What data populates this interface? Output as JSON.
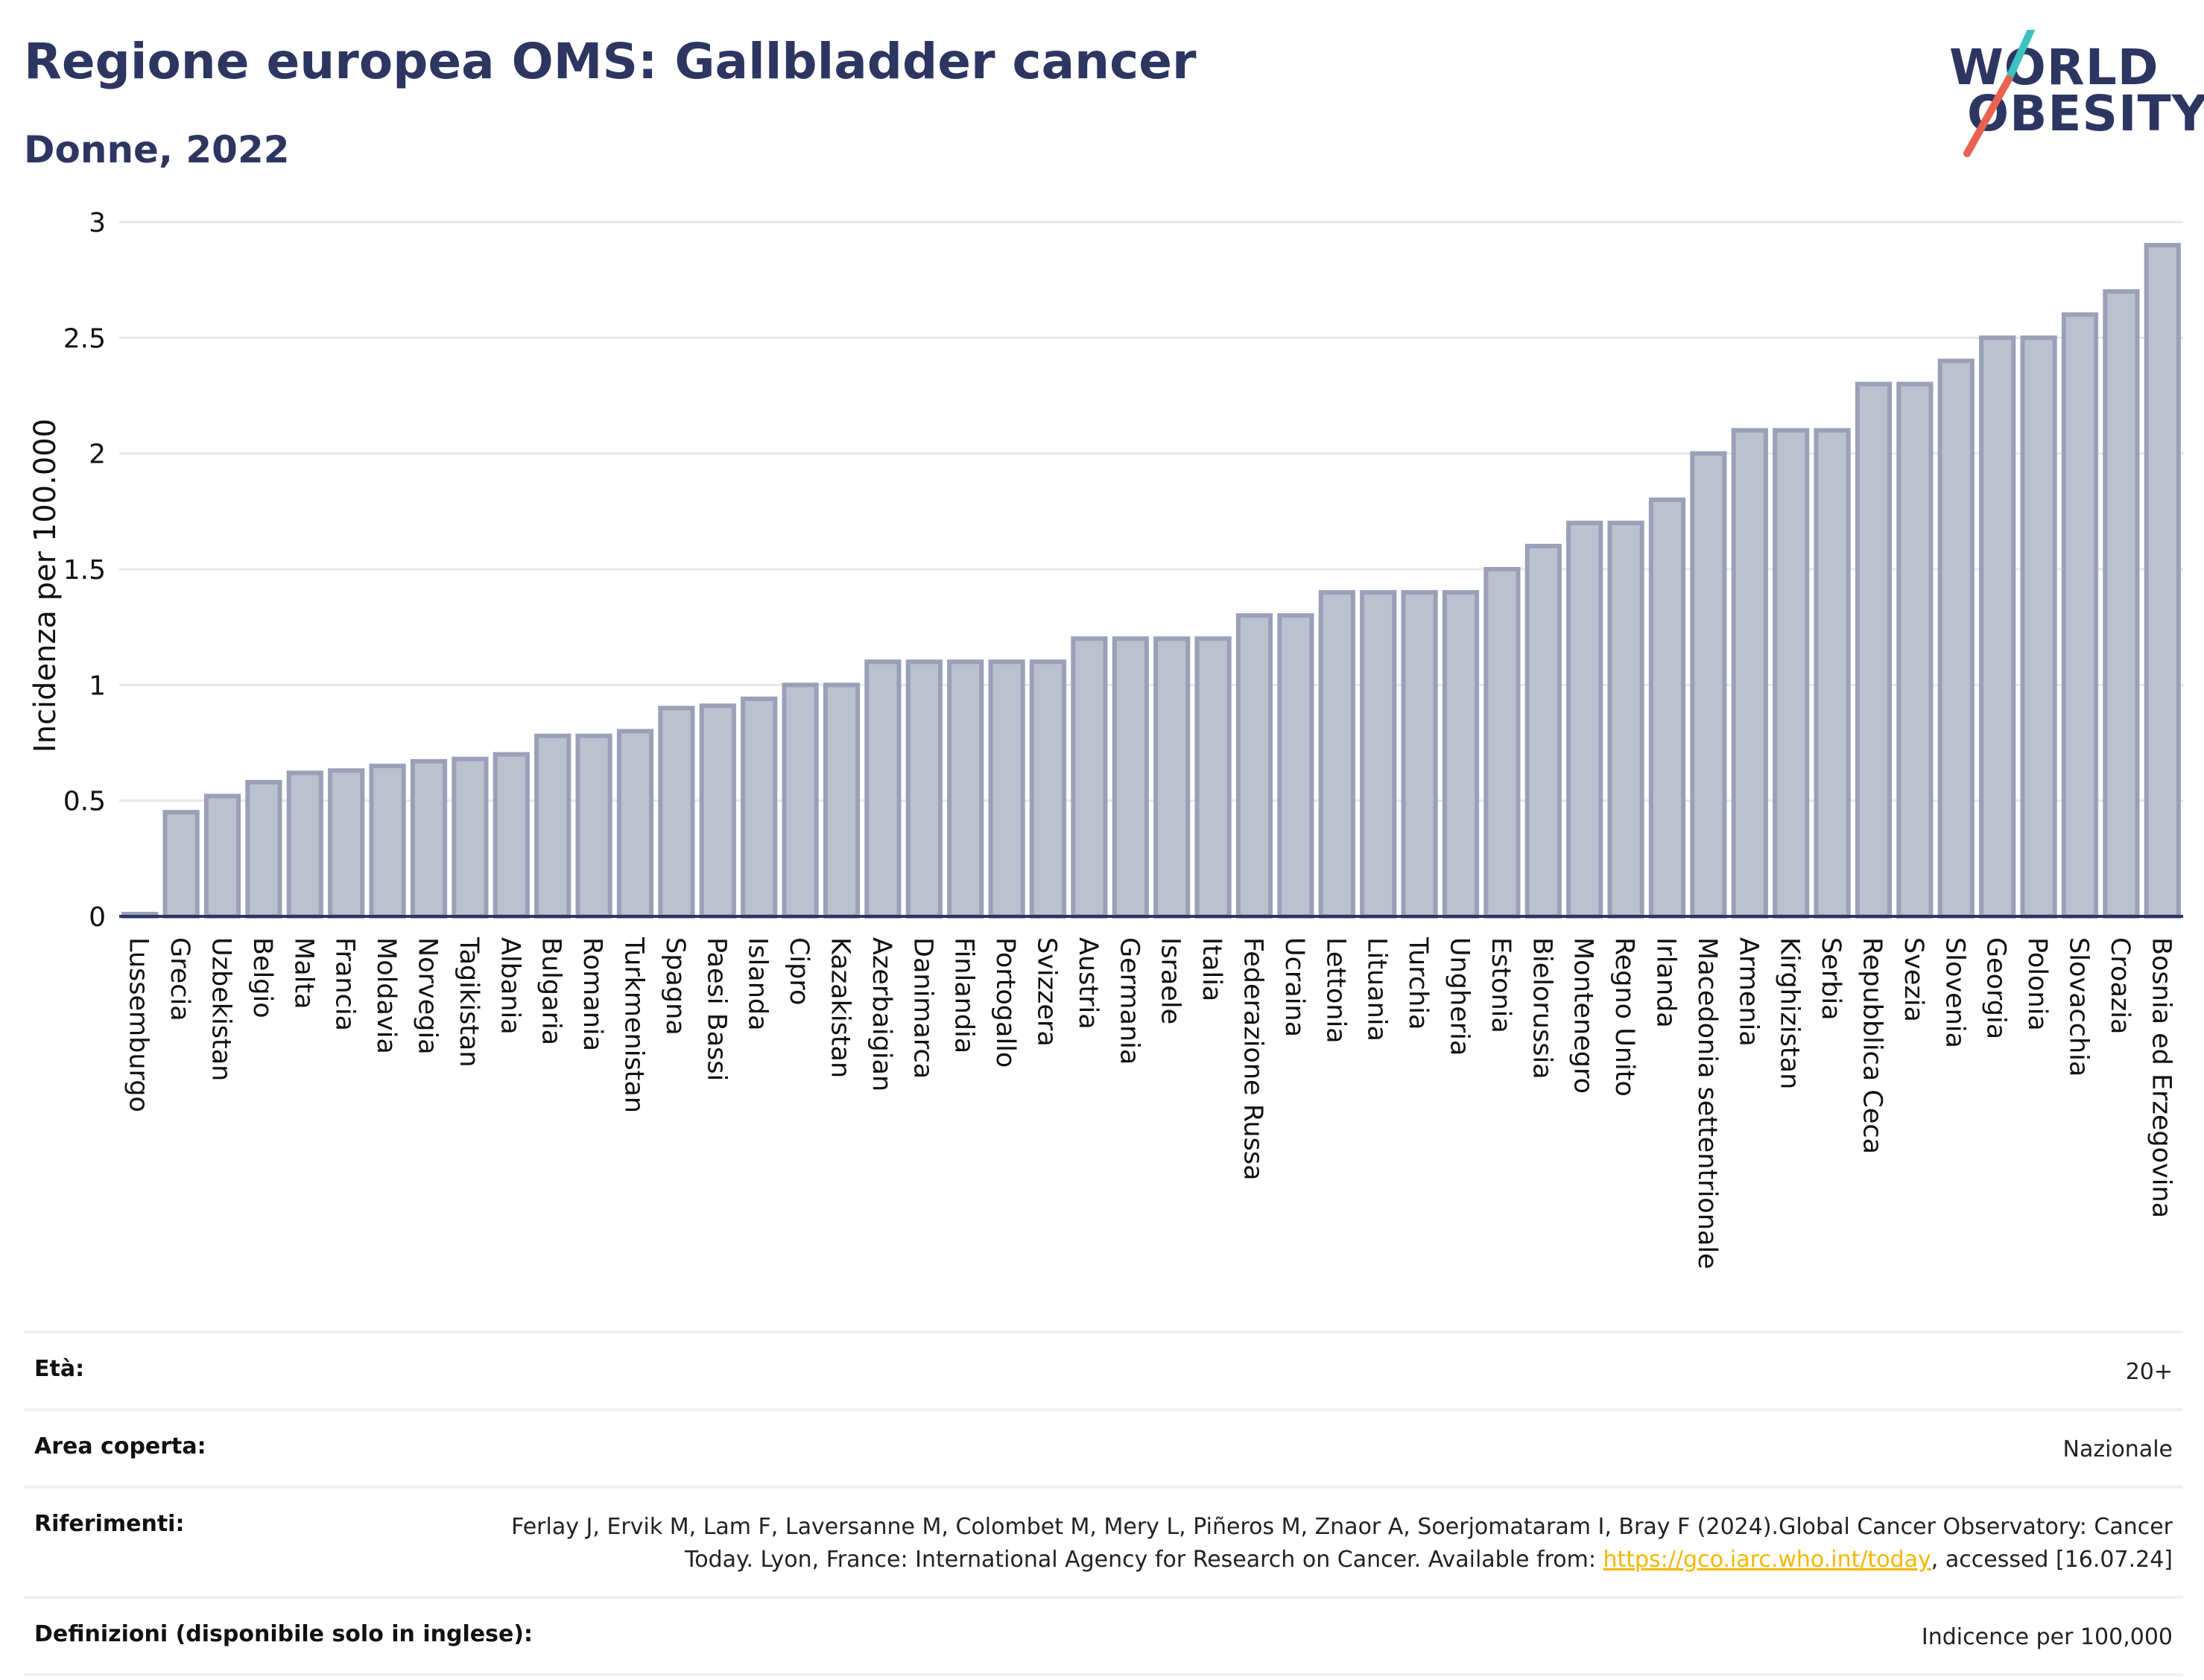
{
  "header": {
    "title": "Regione europea OMS: Gallbladder cancer",
    "subtitle": "Donne, 2022"
  },
  "logo": {
    "line1": "WORLD",
    "line2": "OBESITY",
    "colors": {
      "text": "#2d3561",
      "slash_top": "#3cc3c0",
      "slash_bottom": "#e8624f"
    }
  },
  "chart_data": {
    "type": "bar",
    "title": "Regione europea OMS: Gallbladder cancer",
    "subtitle": "Donne, 2022",
    "ylabel": "Incidenza per 100.000",
    "xlabel": "",
    "ylim": [
      0,
      3
    ],
    "yticks": [
      0,
      0.5,
      1,
      1.5,
      2,
      2.5,
      3
    ],
    "ytick_labels": [
      "0",
      "0.5",
      "1",
      "1.5",
      "2",
      "2.5",
      "3"
    ],
    "grid": true,
    "bar_color": "#bcc1cf",
    "bar_border": "#9aa0b8",
    "categories": [
      "Lussemburgo",
      "Grecia",
      "Uzbekistan",
      "Belgio",
      "Malta",
      "Francia",
      "Moldavia",
      "Norvegia",
      "Tagikistan",
      "Albania",
      "Bulgaria",
      "Romania",
      "Turkmenistan",
      "Spagna",
      "Paesi Bassi",
      "Islanda",
      "Cipro",
      "Kazakistan",
      "Azerbaigian",
      "Danimarca",
      "Finlandia",
      "Portogallo",
      "Svizzera",
      "Austria",
      "Germania",
      "Israele",
      "Italia",
      "Federazione Russa",
      "Ucraina",
      "Lettonia",
      "Lituania",
      "Turchia",
      "Ungheria",
      "Estonia",
      "Bielorussia",
      "Montenegro",
      "Regno Unito",
      "Irlanda",
      "Macedonia settentrionale",
      "Armenia",
      "Kirghizistan",
      "Serbia",
      "Repubblica Ceca",
      "Svezia",
      "Slovenia",
      "Georgia",
      "Polonia",
      "Slovacchia",
      "Croazia",
      "Bosnia ed Erzegovina"
    ],
    "values": [
      0.01,
      0.45,
      0.52,
      0.58,
      0.62,
      0.63,
      0.65,
      0.67,
      0.68,
      0.7,
      0.78,
      0.78,
      0.8,
      0.9,
      0.91,
      0.94,
      1.0,
      1.0,
      1.1,
      1.1,
      1.1,
      1.1,
      1.1,
      1.2,
      1.2,
      1.2,
      1.2,
      1.3,
      1.3,
      1.4,
      1.4,
      1.4,
      1.4,
      1.5,
      1.6,
      1.7,
      1.7,
      1.8,
      2.0,
      2.1,
      2.1,
      2.1,
      2.3,
      2.3,
      2.4,
      2.5,
      2.5,
      2.6,
      2.7,
      2.9
    ]
  },
  "info": {
    "age_label": "Età:",
    "age_value": "20+",
    "area_label": "Area coperta:",
    "area_value": "Nazionale",
    "ref_label": "Riferimenti:",
    "ref_text_1": "Ferlay J, Ervik M, Lam F, Laversanne M, Colombet M, Mery L, Piñeros M, Znaor A, Soerjomataram I, Bray F (2024).Global Cancer Observatory: Cancer Today. Lyon, France: International Agency for Research on Cancer. Available from: ",
    "ref_link": "https://gco.iarc.who.int/today",
    "ref_text_2": ", accessed [16.07.24]",
    "def_label": "Definizioni (disponibile solo in inglese):",
    "def_value": "Indicence per 100,000"
  }
}
